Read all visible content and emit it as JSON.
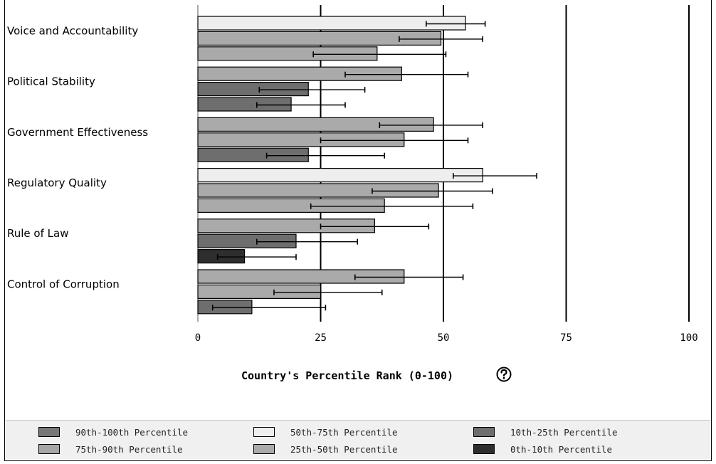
{
  "chart_data": {
    "type": "bar",
    "orientation": "horizontal",
    "title": "",
    "xlabel": "Country's Percentile Rank (0-100)",
    "ylabel": "",
    "xlim": [
      0,
      100
    ],
    "xticks": [
      "0",
      "25",
      "50",
      "75",
      "100"
    ],
    "grid": "vertical",
    "legend_placement": "bottom",
    "categories": [
      "Voice and Accountability",
      "Political Stability",
      "Government Effectiveness",
      "Regulatory Quality",
      "Rule of Law",
      "Control of Corruption"
    ],
    "groups": [
      {
        "bars": [
          {
            "value": 54.5,
            "lo": 46.5,
            "hi": 58.5,
            "band": "50-75"
          },
          {
            "value": 49.5,
            "lo": 41.0,
            "hi": 58.0,
            "band": "25-50"
          },
          {
            "value": 36.5,
            "lo": 23.5,
            "hi": 50.5,
            "band": "25-50"
          }
        ]
      },
      {
        "bars": [
          {
            "value": 41.5,
            "lo": 30.0,
            "hi": 55.0,
            "band": "25-50"
          },
          {
            "value": 22.5,
            "lo": 12.5,
            "hi": 34.0,
            "band": "10-25"
          },
          {
            "value": 19.0,
            "lo": 12.0,
            "hi": 30.0,
            "band": "10-25"
          }
        ]
      },
      {
        "bars": [
          {
            "value": 48.0,
            "lo": 37.0,
            "hi": 58.0,
            "band": "25-50"
          },
          {
            "value": 42.0,
            "lo": 25.0,
            "hi": 55.0,
            "band": "25-50"
          },
          {
            "value": 22.5,
            "lo": 14.0,
            "hi": 38.0,
            "band": "10-25"
          }
        ]
      },
      {
        "bars": [
          {
            "value": 58.0,
            "lo": 52.0,
            "hi": 69.0,
            "band": "50-75"
          },
          {
            "value": 49.0,
            "lo": 35.5,
            "hi": 60.0,
            "band": "25-50"
          },
          {
            "value": 38.0,
            "lo": 23.0,
            "hi": 56.0,
            "band": "25-50"
          }
        ]
      },
      {
        "bars": [
          {
            "value": 36.0,
            "lo": 25.0,
            "hi": 47.0,
            "band": "25-50"
          },
          {
            "value": 20.0,
            "lo": 12.0,
            "hi": 32.5,
            "band": "10-25"
          },
          {
            "value": 9.5,
            "lo": 4.0,
            "hi": 20.0,
            "band": "0-10"
          }
        ]
      },
      {
        "bars": [
          {
            "value": 42.0,
            "lo": 32.0,
            "hi": 54.0,
            "band": "25-50"
          },
          {
            "value": 25.0,
            "lo": 15.5,
            "hi": 37.5,
            "band": "25-50"
          },
          {
            "value": 11.0,
            "lo": 3.0,
            "hi": 26.0,
            "band": "10-25"
          }
        ]
      }
    ]
  },
  "legend": [
    {
      "key": "90-100",
      "label": "90th-100th Percentile",
      "color": "#777777"
    },
    {
      "key": "50-75",
      "label": "50th-75th Percentile",
      "color": "#eeeeee"
    },
    {
      "key": "10-25",
      "label": "10th-25th Percentile",
      "color": "#6e6e6e"
    },
    {
      "key": "75-90",
      "label": "75th-90th Percentile",
      "color": "#a5a5a5"
    },
    {
      "key": "25-50",
      "label": "25th-50th Percentile",
      "color": "#aaaaaa"
    },
    {
      "key": "0-10",
      "label": "0th-10th Percentile",
      "color": "#2e2e2e"
    }
  ],
  "help_icon": "question-mark-icon"
}
